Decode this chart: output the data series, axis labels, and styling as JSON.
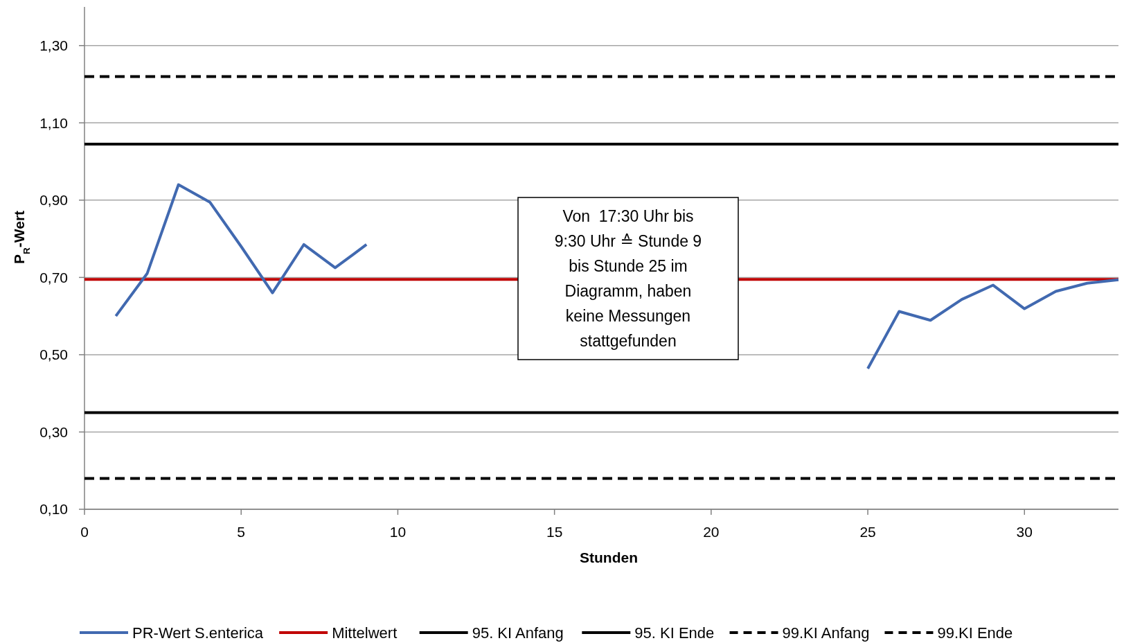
{
  "chart_data": {
    "type": "line",
    "xlabel": "Stunden",
    "ylabel": "P$_{R}$-Wert",
    "xlim": [
      0,
      33
    ],
    "xticks": [
      0,
      5,
      10,
      15,
      20,
      25,
      30
    ],
    "ylim": [
      0.1,
      1.4
    ],
    "yticks": [
      {
        "value": 0.1,
        "label": "0,10"
      },
      {
        "value": 0.3,
        "label": "0,30"
      },
      {
        "value": 0.5,
        "label": "0,50"
      },
      {
        "value": 0.7,
        "label": "0,70"
      },
      {
        "value": 0.9,
        "label": "0,90"
      },
      {
        "value": 1.1,
        "label": "1,10"
      },
      {
        "value": 1.3,
        "label": "1,30"
      }
    ],
    "grid": "y",
    "legend": "bottom",
    "marker": "none",
    "annotations": [
      "Von  17:30 Uhr bis 9:30 Uhr ≙ Stunde 9 bis Stunde 25 im Diagramm, haben keine Messungen stattgefunden"
    ],
    "series": [
      {
        "name": "PR-Wert S.enterica",
        "color": "#4169b0",
        "x": [
          1,
          2,
          3,
          4,
          5,
          6,
          7,
          8,
          9,
          10,
          11,
          12,
          13,
          14,
          15,
          16,
          17,
          18,
          19,
          20,
          21,
          22,
          23,
          24,
          25,
          26,
          27,
          28,
          29,
          30,
          31,
          32,
          33
        ],
        "values": [
          0.6,
          0.71,
          0.94,
          0.895,
          0.78,
          0.66,
          0.785,
          0.725,
          0.785,
          null,
          null,
          null,
          null,
          null,
          null,
          null,
          null,
          null,
          null,
          null,
          null,
          null,
          null,
          null,
          0.464,
          0.612,
          0.589,
          0.643,
          0.68,
          0.619,
          0.664,
          0.685,
          0.694
        ]
      },
      {
        "name": "Mittelwert",
        "color": "#c00000",
        "x": [
          0,
          33
        ],
        "values": [
          0.695,
          0.695
        ],
        "line_style": "solid"
      },
      {
        "name": "95. KI Anfang",
        "color": "#000000",
        "x": [
          0,
          33
        ],
        "values": [
          0.35,
          0.35
        ],
        "line_style": "solid"
      },
      {
        "name": "95. KI Ende",
        "color": "#000000",
        "x": [
          0,
          33
        ],
        "values": [
          1.045,
          1.045
        ],
        "line_style": "solid"
      },
      {
        "name": "99.KI Anfang",
        "color": "#000000",
        "x": [
          0,
          33
        ],
        "values": [
          0.18,
          0.18
        ],
        "line_style": "dashed"
      },
      {
        "name": "99.KI Ende",
        "color": "#000000",
        "x": [
          0,
          33
        ],
        "values": [
          1.22,
          1.22
        ],
        "line_style": "dashed"
      }
    ]
  }
}
